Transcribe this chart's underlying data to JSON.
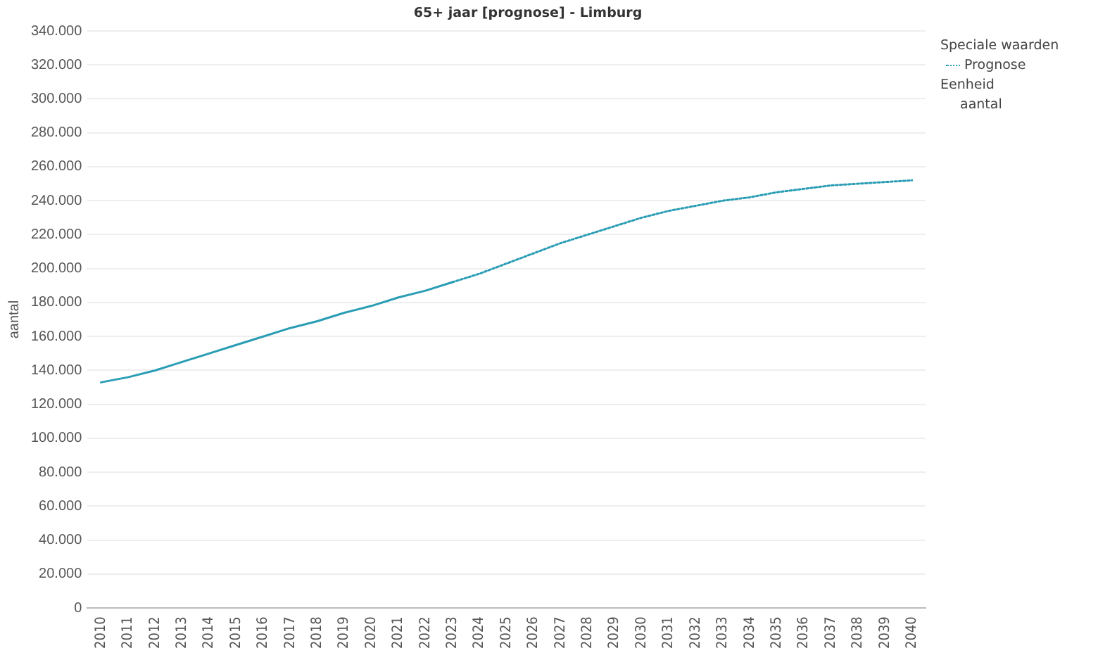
{
  "chart_data": {
    "type": "line",
    "title": "65+ jaar [prognose] - Limburg",
    "ylabel": "aantal",
    "legend_title": "Speciale waarden",
    "legend": "top right",
    "grid": "y",
    "marker": "none",
    "annotations": [
      "Eenheid",
      "aantal"
    ],
    "categories": [
      "2010",
      "2011",
      "2012",
      "2013",
      "2014",
      "2015",
      "2016",
      "2017",
      "2018",
      "2019",
      "2020",
      "2021",
      "2022",
      "2023",
      "2024",
      "2025",
      "2026",
      "2027",
      "2028",
      "2029",
      "2030",
      "2031",
      "2032",
      "2033",
      "2034",
      "2035",
      "2036",
      "2037",
      "2038",
      "2039",
      "2040"
    ],
    "ylim": [
      0,
      340000
    ],
    "yticks": [
      0,
      {
        "value": 20000,
        "label": "20.000"
      },
      {
        "value": 40000,
        "label": "40.000"
      },
      {
        "value": 60000,
        "label": "60.000"
      },
      {
        "value": 80000,
        "label": "80.000"
      },
      {
        "value": 100000,
        "label": "100.000"
      },
      {
        "value": 120000,
        "label": "120.000"
      },
      {
        "value": 140000,
        "label": "140.000"
      },
      {
        "value": 160000,
        "label": "160.000"
      },
      {
        "value": 180000,
        "label": "180.000"
      },
      {
        "value": 200000,
        "label": "200.000"
      },
      {
        "value": 220000,
        "label": "220.000"
      },
      {
        "value": 240000,
        "label": "240.000"
      },
      {
        "value": 260000,
        "label": "260.000"
      },
      {
        "value": 280000,
        "label": "280.000"
      },
      {
        "value": 300000,
        "label": "300.000"
      },
      {
        "value": 320000,
        "label": "320.000"
      },
      {
        "value": 340000,
        "label": "340.000"
      }
    ],
    "series": [
      {
        "color": "#2a9db5",
        "line_style": "solid",
        "values": [
          133000,
          136000,
          140000,
          145000,
          150000,
          155000,
          160000,
          165000,
          169000,
          174000,
          178000,
          183000,
          187000,
          192000,
          null,
          null,
          null,
          null,
          null,
          null,
          null,
          null,
          null,
          null,
          null,
          null,
          null,
          null,
          null,
          null,
          null
        ]
      },
      {
        "name": "Prognose",
        "color": "#2a9db5",
        "line_style": "dotted",
        "values": [
          null,
          null,
          null,
          null,
          null,
          null,
          null,
          null,
          null,
          null,
          null,
          null,
          null,
          192000,
          197000,
          203000,
          209000,
          215000,
          220000,
          225000,
          230000,
          234000,
          237000,
          240000,
          242000,
          245000,
          247000,
          249000,
          250000,
          251000,
          252000
        ]
      }
    ]
  }
}
